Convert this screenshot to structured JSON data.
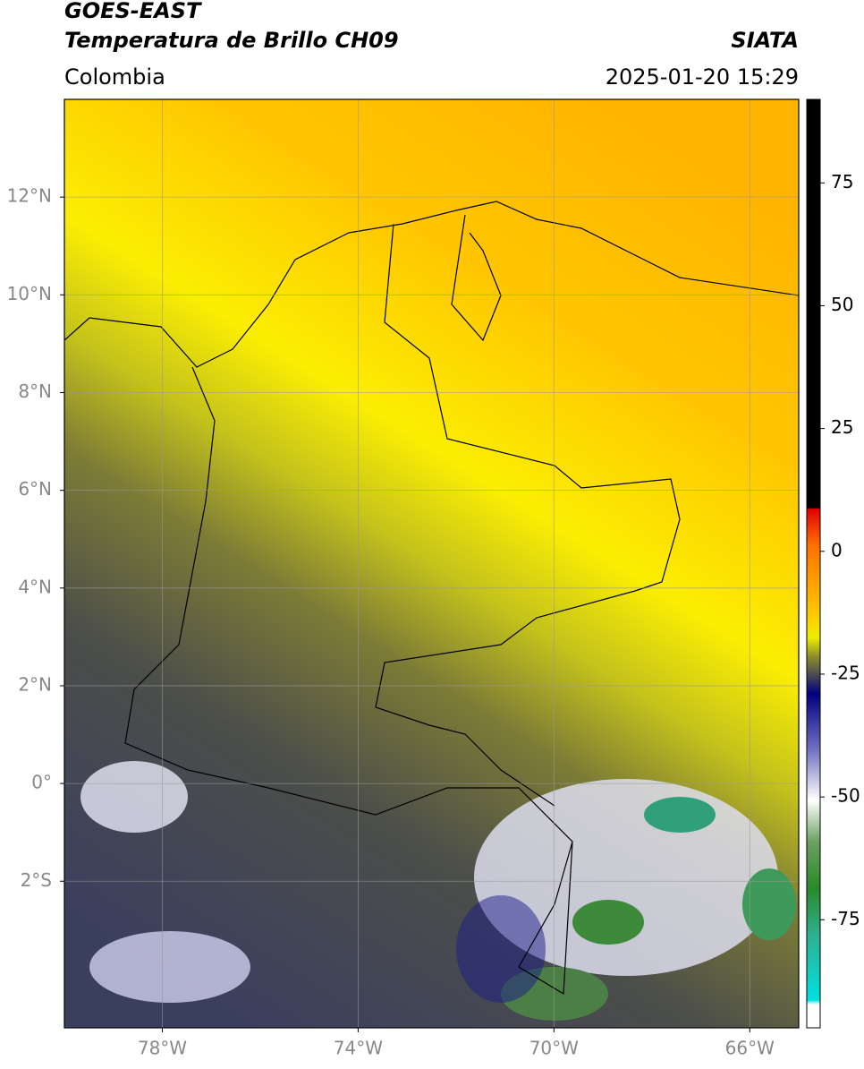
{
  "header": {
    "title_line1": "GOES-EAST",
    "title_line2": "Temperatura de Brillo CH09",
    "region": "Colombia",
    "source": "SIATA",
    "timestamp": "2025-01-20 15:29"
  },
  "map": {
    "xlim": [
      -80,
      -65
    ],
    "ylim": [
      -5,
      14
    ],
    "xticks": [
      {
        "value": -78,
        "label": "78°W"
      },
      {
        "value": -74,
        "label": "74°W"
      },
      {
        "value": -70,
        "label": "70°W"
      },
      {
        "value": -66,
        "label": "66°W"
      }
    ],
    "yticks": [
      {
        "value": 12,
        "label": "12°N"
      },
      {
        "value": 10,
        "label": "10°N"
      },
      {
        "value": 8,
        "label": "8°N"
      },
      {
        "value": 6,
        "label": "6°N"
      },
      {
        "value": 4,
        "label": "4°N"
      },
      {
        "value": 2,
        "label": "2°N"
      },
      {
        "value": 0,
        "label": "0°"
      },
      {
        "value": -2,
        "label": "2°S"
      }
    ],
    "grid": true
  },
  "colorbar": {
    "lim": [
      -97,
      92
    ],
    "ticks": [
      75,
      50,
      25,
      0,
      -25,
      -50,
      -75
    ]
  }
}
